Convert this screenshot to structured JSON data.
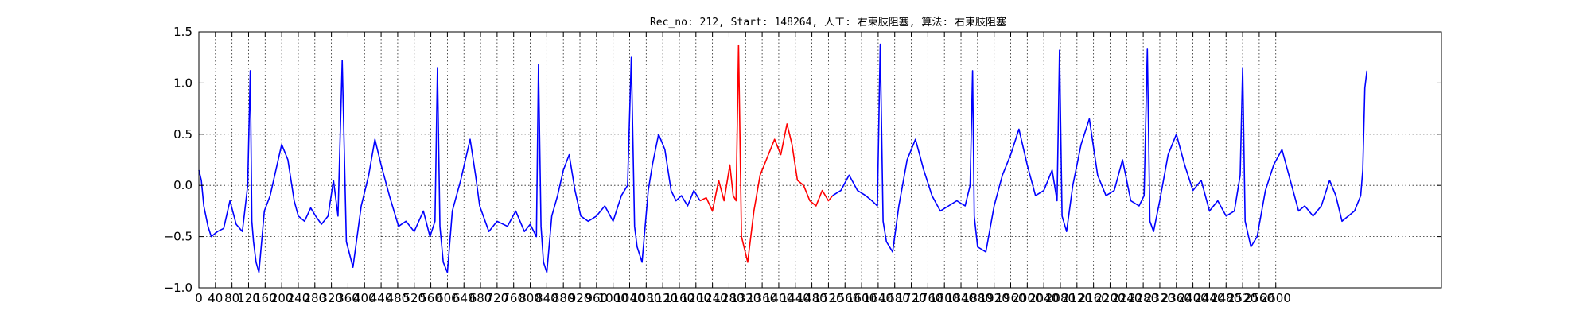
{
  "chart_data": {
    "type": "line",
    "title": "Rec_no: 212, Start: 148264, 人工: 右束肢阻塞, 算法: 右束肢阻塞",
    "xlabel": "",
    "ylabel": "",
    "xlim": [
      0,
      3000
    ],
    "ylim": [
      -1.0,
      1.5
    ],
    "yticks": [
      1.5,
      1.0,
      0.5,
      0.0,
      -0.5,
      -1.0
    ],
    "ytick_labels": [
      "1.5",
      "1.0",
      "0.5",
      "0.0",
      "−0.5",
      "−1.0"
    ],
    "xticks": [
      0,
      40,
      80,
      120,
      160,
      200,
      240,
      280,
      320,
      360,
      400,
      440,
      480,
      520,
      560,
      600,
      640,
      680,
      720,
      760,
      800,
      840,
      880,
      920,
      960,
      1000,
      1040,
      1080,
      1120,
      1160,
      1200,
      1240,
      1280,
      1320,
      1360,
      1400,
      1440,
      1480,
      1520,
      1560,
      1600,
      1640,
      1680,
      1720,
      1760,
      1800,
      1840,
      1880,
      1920,
      1960,
      2000,
      2040,
      2080,
      2120,
      2160,
      2200,
      2240,
      2280,
      2320,
      2360,
      2400,
      2440,
      2480,
      2520,
      2560,
      2600
    ],
    "grid": true,
    "series_colors": {
      "signal": "#0000ff",
      "highlight": "#ff0000"
    },
    "highlight_range": [
      1210,
      1530
    ],
    "series": [
      {
        "color": "#0000ff",
        "x": [
          0,
          6,
          12,
          22,
          30,
          45,
          60,
          75,
          90,
          105,
          118,
          124,
          128,
          132,
          138,
          145,
          158,
          172,
          186,
          200,
          215,
          230,
          240,
          255,
          270,
          282,
          296,
          312,
          325,
          336,
          346,
          356,
          372,
          392,
          410,
          425,
          440,
          460,
          482,
          500,
          520,
          542,
          558,
          570,
          576,
          582,
          590,
          600,
          612,
          632,
          655,
          668,
          678,
          700,
          720,
          745,
          765,
          786,
          800,
          815,
          820,
          826,
          832,
          840,
          852,
          866,
          880,
          894,
          908,
          922,
          940,
          960,
          980,
          1000,
          1020,
          1035,
          1044,
          1052,
          1058,
          1070,
          1085,
          1095,
          1110,
          1125,
          1140,
          1152,
          1165,
          1180,
          1195,
          1210
        ],
        "y": [
          0.15,
          0.05,
          -0.2,
          -0.4,
          -0.5,
          -0.45,
          -0.42,
          -0.15,
          -0.38,
          -0.45,
          0.0,
          1.12,
          -0.35,
          -0.55,
          -0.75,
          -0.85,
          -0.25,
          -0.1,
          0.15,
          0.4,
          0.25,
          -0.15,
          -0.3,
          -0.35,
          -0.22,
          -0.3,
          -0.38,
          -0.3,
          0.05,
          -0.3,
          1.22,
          -0.55,
          -0.8,
          -0.2,
          0.1,
          0.45,
          0.2,
          -0.1,
          -0.4,
          -0.35,
          -0.45,
          -0.25,
          -0.5,
          -0.35,
          1.15,
          -0.4,
          -0.75,
          -0.85,
          -0.25,
          0.05,
          0.45,
          0.1,
          -0.2,
          -0.45,
          -0.35,
          -0.4,
          -0.25,
          -0.45,
          -0.38,
          -0.5,
          1.18,
          -0.4,
          -0.75,
          -0.85,
          -0.3,
          -0.1,
          0.15,
          0.3,
          -0.05,
          -0.3,
          -0.35,
          -0.3,
          -0.2,
          -0.35,
          -0.1,
          0.0,
          1.25,
          -0.4,
          -0.6,
          -0.75,
          -0.05,
          0.2,
          0.5,
          0.35,
          -0.05,
          -0.15,
          -0.1,
          -0.2,
          -0.05,
          -0.15
        ]
      },
      {
        "color": "#ff0000",
        "x": [
          1210,
          1225,
          1240,
          1255,
          1268,
          1282,
          1290,
          1297,
          1303,
          1310,
          1325,
          1340,
          1355,
          1370,
          1390,
          1405,
          1420,
          1432,
          1445,
          1460,
          1475,
          1490,
          1505,
          1520,
          1530
        ],
        "y": [
          -0.15,
          -0.12,
          -0.25,
          0.05,
          -0.15,
          0.2,
          -0.1,
          -0.15,
          1.37,
          -0.5,
          -0.75,
          -0.25,
          0.1,
          0.25,
          0.45,
          0.3,
          0.6,
          0.4,
          0.05,
          0.0,
          -0.15,
          -0.2,
          -0.05,
          -0.15,
          -0.1
        ]
      },
      {
        "color": "#0000ff",
        "x": [
          1530,
          1550,
          1570,
          1590,
          1610,
          1625,
          1638,
          1645,
          1652,
          1660,
          1675,
          1690,
          1710,
          1730,
          1750,
          1770,
          1790,
          1810,
          1830,
          1850,
          1862,
          1868,
          1872,
          1880,
          1900,
          1920,
          1940,
          1960,
          1980,
          2000,
          2020,
          2040,
          2060,
          2072,
          2078,
          2084,
          2095,
          2110,
          2130,
          2150,
          2170,
          2190,
          2210,
          2230,
          2250,
          2270,
          2282,
          2290,
          2296,
          2305,
          2320,
          2340,
          2360,
          2380,
          2400,
          2420,
          2440,
          2460,
          2480,
          2500,
          2514,
          2520,
          2526,
          2540,
          2555,
          2575,
          2595,
          2615,
          2635,
          2655,
          2670,
          2690,
          2710,
          2730,
          2745,
          2760,
          2775,
          2790,
          2805,
          2810,
          2815,
          2820
        ],
        "y": [
          -0.1,
          -0.05,
          0.1,
          -0.05,
          -0.1,
          -0.15,
          -0.2,
          1.38,
          -0.35,
          -0.55,
          -0.65,
          -0.2,
          0.25,
          0.45,
          0.15,
          -0.1,
          -0.25,
          -0.2,
          -0.15,
          -0.2,
          0.0,
          1.12,
          -0.3,
          -0.6,
          -0.65,
          -0.2,
          0.1,
          0.3,
          0.55,
          0.2,
          -0.1,
          -0.05,
          0.15,
          -0.15,
          1.32,
          -0.3,
          -0.45,
          0.0,
          0.4,
          0.65,
          0.1,
          -0.1,
          -0.05,
          0.25,
          -0.15,
          -0.2,
          -0.1,
          1.33,
          -0.35,
          -0.45,
          -0.15,
          0.3,
          0.5,
          0.2,
          -0.05,
          0.05,
          -0.25,
          -0.15,
          -0.3,
          -0.25,
          0.1,
          1.15,
          -0.35,
          -0.6,
          -0.5,
          -0.05,
          0.2,
          0.35,
          0.05,
          -0.25,
          -0.2,
          -0.3,
          -0.2,
          0.05,
          -0.1,
          -0.35,
          -0.3,
          -0.25,
          -0.1,
          0.15,
          0.95,
          1.12
        ]
      }
    ]
  }
}
